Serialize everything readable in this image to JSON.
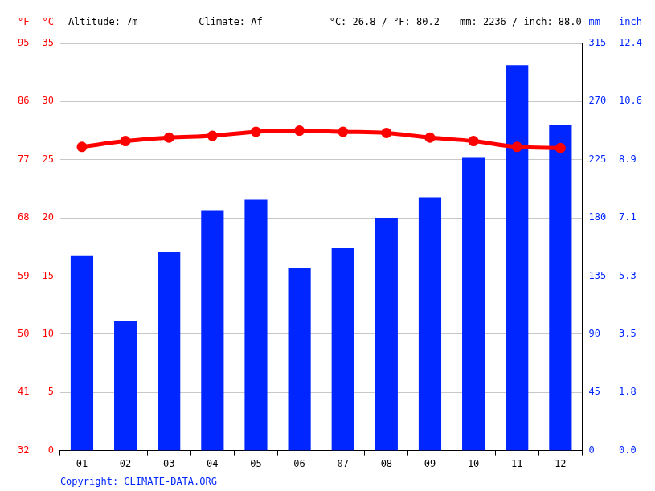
{
  "chart_data": {
    "type": "bar",
    "header": [
      "Altitude: 7m",
      "Climate: Af",
      "°C: 26.8 / °F: 80.2",
      "mm: 2236 / inch: 88.0"
    ],
    "footer": "Copyright: CLIMATE-DATA.ORG",
    "categories": [
      "01",
      "02",
      "03",
      "04",
      "05",
      "06",
      "07",
      "08",
      "09",
      "10",
      "11",
      "12"
    ],
    "series": [
      {
        "name": "°C",
        "type": "line",
        "axis": "y",
        "color": "#ff0000",
        "marker": "circle",
        "line_style": "solid",
        "values": [
          26.1,
          26.6,
          26.9,
          27.05,
          27.4,
          27.5,
          27.4,
          27.3,
          26.9,
          26.6,
          26.1,
          26.0
        ]
      },
      {
        "name": "mm",
        "type": "bar",
        "axis": "y2",
        "color": "#0026ff",
        "values": [
          151,
          100,
          154,
          186,
          194,
          141,
          157,
          180,
          196,
          227,
          298,
          252
        ]
      }
    ],
    "ylabel": "°C",
    "ylim": [
      0,
      35
    ],
    "yticks": [
      0,
      5,
      10,
      15,
      20,
      25,
      30,
      35
    ],
    "y2label": "mm",
    "y2lim": [
      0,
      315
    ],
    "y2ticks": [
      0,
      45,
      90,
      135,
      180,
      225,
      270,
      315
    ],
    "y3label": "°F",
    "y3lim": [
      32,
      95
    ],
    "y3ticks": [
      32,
      41,
      50,
      59,
      68,
      77,
      86,
      95
    ],
    "y4label": "inch",
    "y4lim": [
      0,
      12.4
    ],
    "y4ticks": [
      {
        "value": 0,
        "label": "0.0"
      },
      {
        "value": 1.77,
        "label": "1.8"
      },
      {
        "value": 3.54,
        "label": "3.5"
      },
      {
        "value": 5.31,
        "label": "5.3"
      },
      {
        "value": 7.09,
        "label": "7.1"
      },
      {
        "value": 8.86,
        "label": "8.9"
      },
      {
        "value": 10.63,
        "label": "10.6"
      },
      {
        "value": 12.4,
        "label": "12.4"
      }
    ],
    "grid": true
  }
}
